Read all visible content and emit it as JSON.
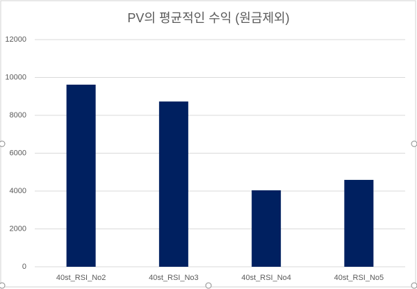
{
  "chart_data": {
    "type": "bar",
    "title": "PV의 평균적인 수익 (원금제외)",
    "categories": [
      "40st_RSI_No2",
      "40st_RSI_No3",
      "40st_RSI_No4",
      "40st_RSI_No5"
    ],
    "values": [
      9620,
      8730,
      4040,
      4590
    ],
    "color": "#002060",
    "ylim": [
      0,
      12000
    ],
    "yticks": [
      0,
      2000,
      4000,
      6000,
      8000,
      10000,
      12000
    ],
    "grid": true
  }
}
